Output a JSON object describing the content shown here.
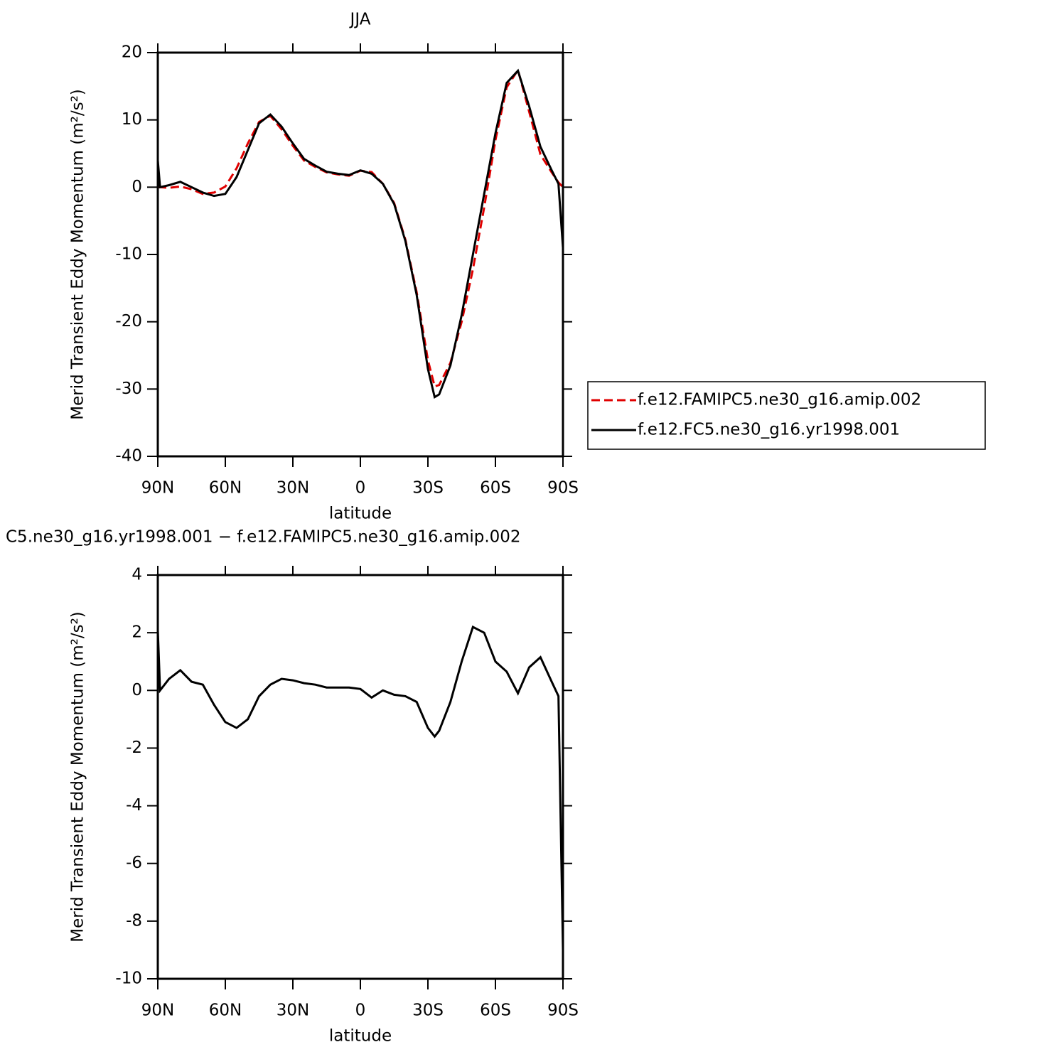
{
  "chart_data": [
    {
      "type": "line",
      "title": "JJA",
      "xlabel": "latitude",
      "ylabel": "Merid Transient Eddy Momentum (m²/s²)",
      "x": [
        90,
        89,
        85,
        80,
        75,
        70,
        65,
        60,
        55,
        50,
        45,
        40,
        35,
        30,
        25,
        20,
        15,
        10,
        5,
        0,
        -5,
        -10,
        -15,
        -20,
        -25,
        -30,
        -33,
        -35,
        -40,
        -45,
        -50,
        -55,
        -60,
        -65,
        -70,
        -75,
        -80,
        -85,
        -88,
        -90
      ],
      "series": [
        {
          "name": "f.e12.FAMIPC5.ne30_g16.amip.002",
          "color": "#e00000",
          "dashed": true,
          "values": [
            0,
            0,
            -0.1,
            0.1,
            -0.3,
            -1.0,
            -0.8,
            0.1,
            2.8,
            6.5,
            9.7,
            10.6,
            8.6,
            6.15,
            3.95,
            3.0,
            2.2,
            1.9,
            1.7,
            2.45,
            2.25,
            0.5,
            -2.35,
            -7.8,
            -15.6,
            -25.7,
            -29.6,
            -29.4,
            -26.1,
            -20,
            -12.2,
            -3,
            7,
            14.85,
            17.4,
            11.2,
            4.85,
            2.2,
            0.7,
            0
          ]
        },
        {
          "name": "f.e12.FC5.ne30_g16.yr1998.001",
          "color": "#000000",
          "dashed": false,
          "values": [
            4,
            0,
            0.3,
            0.8,
            0,
            -0.8,
            -1.3,
            -1.0,
            1.5,
            5.5,
            9.5,
            10.8,
            9,
            6.5,
            4.2,
            3.2,
            2.3,
            2,
            1.8,
            2.5,
            2,
            0.5,
            -2.5,
            -8,
            -16,
            -27,
            -31.2,
            -30.8,
            -26.5,
            -19,
            -10,
            -1,
            8,
            15.5,
            17.3,
            12,
            6,
            2.5,
            0.5,
            -9
          ]
        }
      ],
      "xlim": [
        90,
        -90
      ],
      "ylim": [
        -40,
        20
      ],
      "xticks": [
        {
          "value": 90,
          "label": "90N"
        },
        {
          "value": 60,
          "label": "60N"
        },
        {
          "value": 30,
          "label": "30N"
        },
        0,
        {
          "value": -30,
          "label": "30S"
        },
        {
          "value": -60,
          "label": "60S"
        },
        {
          "value": -90,
          "label": "90S"
        }
      ],
      "yticks": [
        -40,
        -30,
        -20,
        -10,
        0,
        10,
        20
      ],
      "legend": "right"
    },
    {
      "type": "line",
      "title": "C5.ne30_g16.yr1998.001 − f.e12.FAMIPC5.ne30_g16.amip.002",
      "xlabel": "latitude",
      "ylabel": "Merid Transient Eddy Momentum (m²/s²)",
      "x": [
        90,
        89,
        85,
        80,
        75,
        70,
        65,
        60,
        55,
        50,
        45,
        40,
        35,
        30,
        25,
        20,
        15,
        10,
        5,
        0,
        -5,
        -10,
        -15,
        -20,
        -25,
        -30,
        -33,
        -35,
        -40,
        -45,
        -50,
        -55,
        -60,
        -65,
        -70,
        -75,
        -80,
        -85,
        -88,
        -90
      ],
      "values": [
        2.1,
        0,
        0.4,
        0.7,
        0.3,
        0.2,
        -0.5,
        -1.1,
        -1.3,
        -1.0,
        -0.2,
        0.2,
        0.4,
        0.35,
        0.25,
        0.2,
        0.1,
        0.1,
        0.1,
        0.05,
        -0.25,
        0,
        -0.15,
        -0.2,
        -0.4,
        -1.3,
        -1.6,
        -1.4,
        -0.4,
        1.0,
        2.2,
        2.0,
        1.0,
        0.65,
        -0.1,
        0.8,
        1.15,
        0.3,
        -0.2,
        -9
      ],
      "color": "#000000",
      "xlim": [
        90,
        -90
      ],
      "ylim": [
        -10,
        4
      ],
      "xticks": [
        {
          "value": 90,
          "label": "90N"
        },
        {
          "value": 60,
          "label": "60N"
        },
        {
          "value": 30,
          "label": "30N"
        },
        0,
        {
          "value": -30,
          "label": "30S"
        },
        {
          "value": -60,
          "label": "60S"
        },
        {
          "value": -90,
          "label": "90S"
        }
      ],
      "yticks": [
        -10,
        -8,
        -6,
        -4,
        -2,
        0,
        2,
        4
      ]
    }
  ]
}
